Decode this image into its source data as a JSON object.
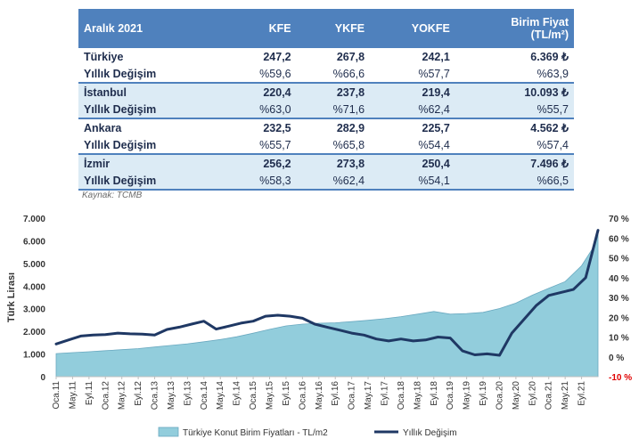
{
  "table": {
    "header": {
      "label": "Aralık 2021",
      "kfe": "KFE",
      "ykfe": "YKFE",
      "yokfe": "YOKFE",
      "price_line1": "Birim Fiyat",
      "price_line2": "(TL/m²)"
    },
    "rows": [
      {
        "name": "Türkiye",
        "kfe": "247,2",
        "ykfe": "267,8",
        "yokfe": "242,1",
        "price": "6.369 ₺"
      },
      {
        "name": "Yıllık Değişim",
        "kfe": "%59,6",
        "ykfe": "%66,6",
        "yokfe": "%57,7",
        "price": "%63,9"
      },
      {
        "name": "İstanbul",
        "kfe": "220,4",
        "ykfe": "237,8",
        "yokfe": "219,4",
        "price": "10.093 ₺"
      },
      {
        "name": "Yıllık Değişim",
        "kfe": "%63,0",
        "ykfe": "%71,6",
        "yokfe": "%62,4",
        "price": "%55,7"
      },
      {
        "name": "Ankara",
        "kfe": "232,5",
        "ykfe": "282,9",
        "yokfe": "225,7",
        "price": "4.562 ₺"
      },
      {
        "name": "Yıllık Değişim",
        "kfe": "%55,7",
        "ykfe": "%65,8",
        "yokfe": "%54,4",
        "price": "%57,4"
      },
      {
        "name": "İzmir",
        "kfe": "256,2",
        "ykfe": "273,8",
        "yokfe": "250,4",
        "price": "7.496 ₺"
      },
      {
        "name": "Yıllık Değişim",
        "kfe": "%58,3",
        "ykfe": "%62,4",
        "yokfe": "%54,1",
        "price": "%66,5"
      }
    ],
    "source": "Kaynak: TCMB"
  },
  "chart_data": {
    "type": "area",
    "ylabel": "Türk Lirası",
    "y_left_ticks": [
      "0",
      "1.000",
      "2.000",
      "3.000",
      "4.000",
      "5.000",
      "6.000",
      "7.000"
    ],
    "y_left_lim": [
      0,
      7000
    ],
    "y_right_ticks": [
      "-10 %",
      "0 %",
      "10 %",
      "20 %",
      "30 %",
      "40 %",
      "50 %",
      "60 %",
      "70 %"
    ],
    "y_right_lim": [
      -10,
      70
    ],
    "x_ticks": [
      "Oca.11",
      "May.11",
      "Eyl.11",
      "Oca.12",
      "May.12",
      "Eyl.12",
      "Oca.13",
      "May.13",
      "Eyl.13",
      "Oca.14",
      "May.14",
      "Eyl.14",
      "Oca.15",
      "May.15",
      "Eyl.15",
      "Oca.16",
      "May.16",
      "Eyl.16",
      "Oca.17",
      "May.17",
      "Eyl.17",
      "Oca.18",
      "May.18",
      "Eyl.18",
      "Oca.19",
      "May.19",
      "Eyl.19",
      "Oca.20",
      "May.20",
      "Eyl.20",
      "Oca.21",
      "May.21",
      "Eyl.21"
    ],
    "grid": false,
    "legend_position": "bottom",
    "series": [
      {
        "name": "Türkiye Konut Birim Fiyatları - TL/m2",
        "axis": "left",
        "color": "#92cddc",
        "kind": "area",
        "x": [
          0,
          4,
          8,
          12,
          16,
          20,
          24,
          28,
          32,
          36,
          40,
          44,
          48,
          52,
          56,
          60,
          64,
          68,
          72,
          76,
          80,
          84,
          88,
          92,
          96,
          100,
          104,
          108,
          112,
          116,
          120,
          124,
          128,
          131,
          132
        ],
        "values": [
          1020,
          1060,
          1100,
          1150,
          1190,
          1240,
          1310,
          1380,
          1450,
          1540,
          1640,
          1760,
          1920,
          2090,
          2240,
          2320,
          2360,
          2380,
          2430,
          2490,
          2560,
          2650,
          2760,
          2880,
          2760,
          2790,
          2840,
          3010,
          3250,
          3600,
          3900,
          4200,
          4900,
          5750,
          6369
        ]
      },
      {
        "name": "Yıllık Değişim",
        "axis": "right",
        "color": "#1f3864",
        "kind": "line",
        "x": [
          0,
          3,
          6,
          9,
          12,
          15,
          18,
          21,
          24,
          27,
          30,
          33,
          36,
          39,
          42,
          45,
          48,
          51,
          54,
          57,
          60,
          63,
          66,
          69,
          72,
          75,
          78,
          81,
          84,
          87,
          90,
          93,
          96,
          99,
          102,
          105,
          108,
          111,
          114,
          117,
          120,
          123,
          126,
          129,
          132
        ],
        "values": [
          6.5,
          8.5,
          10.5,
          11.0,
          11.2,
          12.0,
          11.6,
          11.5,
          11.0,
          13.8,
          15.0,
          16.5,
          18.0,
          14.0,
          15.5,
          17.0,
          18.0,
          20.5,
          21.0,
          20.5,
          19.5,
          16.5,
          15.0,
          13.5,
          12.0,
          11.0,
          9.0,
          8.0,
          9.0,
          8.0,
          8.5,
          10.0,
          9.5,
          3.0,
          1.0,
          1.5,
          0.8,
          12.0,
          19.0,
          26.0,
          31.0,
          32.5,
          34.0,
          40.0,
          63.9
        ]
      }
    ]
  }
}
